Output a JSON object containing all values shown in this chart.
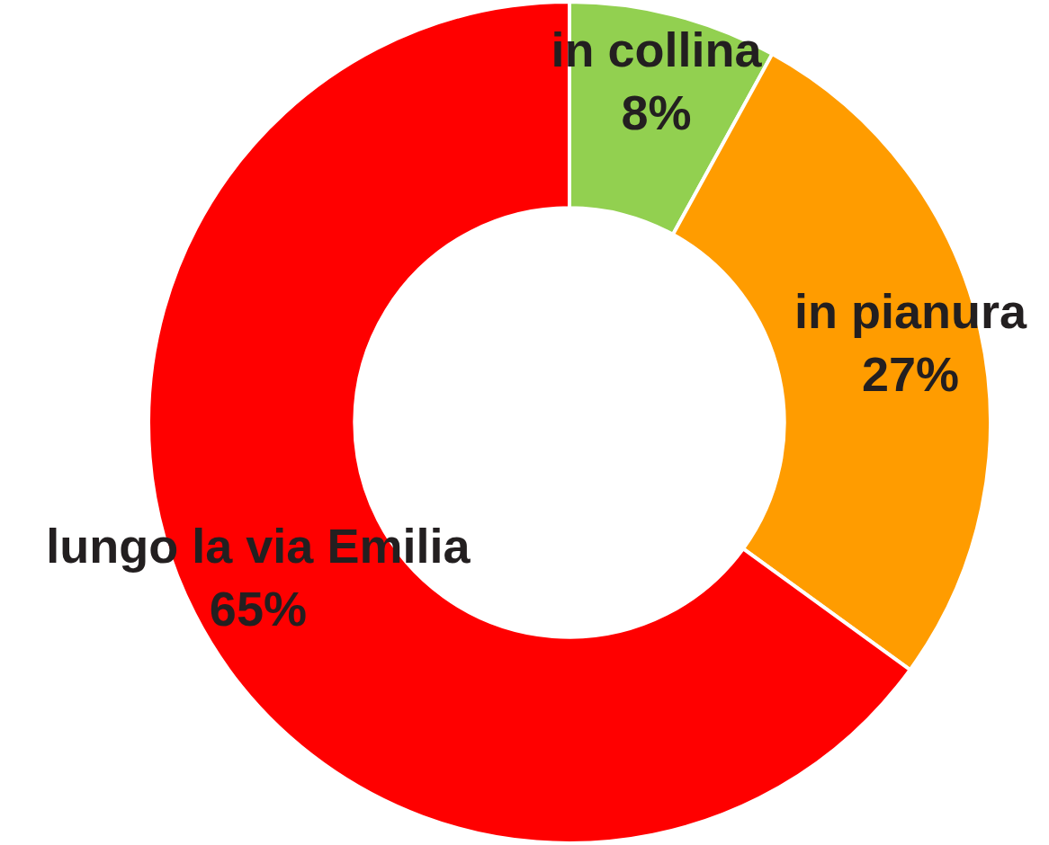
{
  "chart_data": {
    "type": "donut",
    "categories": [
      "in collina",
      "in pianura",
      "lungo la via Emilia"
    ],
    "values": [
      8,
      27,
      65
    ],
    "colors": [
      "#92d050",
      "#ff9c00",
      "#ff0000"
    ],
    "value_labels": [
      "8%",
      "27%",
      "65%"
    ],
    "legend": false
  }
}
